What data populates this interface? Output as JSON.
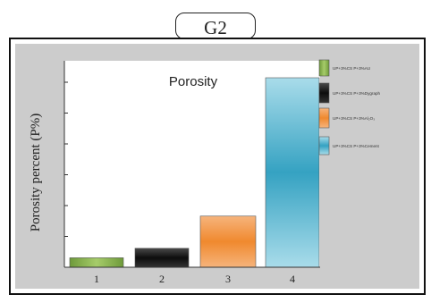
{
  "group_label": "G2",
  "chart_data": {
    "type": "bar",
    "title": "Porosity",
    "xlabel": "",
    "ylabel": "Porosity percent (P%)",
    "categories": [
      "1",
      "2",
      "3",
      "4"
    ],
    "values": [
      5,
      10,
      27,
      100
    ],
    "ylim": [
      0,
      100
    ],
    "grid": false,
    "legend_position": "right",
    "series": [
      {
        "name": "UP+3%CS P+3%AU",
        "color": "#8db552"
      },
      {
        "name": "UP+3%CS P+3%Dygraph",
        "color": "#1a1a1a"
      },
      {
        "name": "UP+3%CS P+3%Al₂O₃",
        "color": "#f09548"
      },
      {
        "name": "UP+3%CS P+3%Cement",
        "color": "#4fb0cc"
      }
    ]
  }
}
